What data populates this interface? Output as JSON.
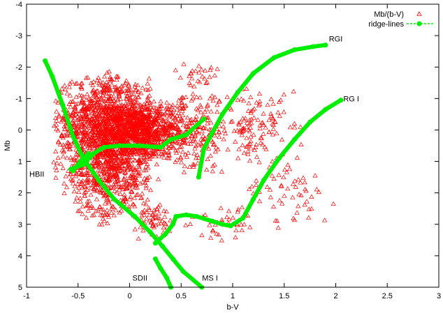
{
  "chart_data": {
    "type": "scatter",
    "xlabel": "b-V",
    "ylabel": "Mb",
    "xlim": [
      -1,
      3
    ],
    "ylim": [
      5,
      -4
    ],
    "y_inverted": true,
    "x_ticks": [
      -1,
      -0.5,
      0,
      0.5,
      1,
      1.5,
      2,
      2.5,
      3
    ],
    "x_tick_labels": [
      "-1",
      "-0.5",
      "0",
      "0.5",
      "1",
      "1.5",
      "2",
      "2.5",
      "3"
    ],
    "y_ticks": [
      -4,
      -3,
      -2,
      -1,
      0,
      1,
      2,
      3,
      4,
      5
    ],
    "y_tick_labels": [
      "-4",
      "-3",
      "-2",
      "-1",
      "0",
      "1",
      "2",
      "3",
      "4",
      "5"
    ],
    "grid": false,
    "legend": {
      "placement": "top-right",
      "entries": [
        {
          "label": "Mb/(b-V)",
          "color": "#ff0000",
          "marker": "triangle"
        },
        {
          "label": "ridge-lines",
          "color": "#00ee00",
          "marker": "filled-circle-line"
        }
      ]
    },
    "annotations": [
      {
        "text": "RGI",
        "x": 2.0,
        "y": -2.9
      },
      {
        "text": "RG I",
        "x": 2.15,
        "y": -1.0
      },
      {
        "text": "HBII",
        "x": -0.9,
        "y": 1.4
      },
      {
        "text": "SDII",
        "x": 0.1,
        "y": 4.7
      },
      {
        "text": "MS I",
        "x": 0.78,
        "y": 4.7
      }
    ],
    "series": [
      {
        "name": "Mb/(b-V)",
        "kind": "scatter",
        "color": "#ff0000",
        "density_regions": [
          {
            "xmin": -0.75,
            "xmax": 0.3,
            "ymin": -1.9,
            "ymax": 2.1,
            "count": 1500
          },
          {
            "xmin": -0.3,
            "xmax": 0.6,
            "ymin": -1.0,
            "ymax": 1.0,
            "count": 700
          },
          {
            "xmin": -0.6,
            "xmax": 0.25,
            "ymin": 0.5,
            "ymax": 3.2,
            "count": 250
          },
          {
            "xmin": 0.0,
            "xmax": 0.5,
            "ymin": 2.2,
            "ymax": 3.6,
            "count": 60
          },
          {
            "xmin": 0.3,
            "xmax": 1.0,
            "ymin": -1.6,
            "ymax": 1.6,
            "count": 200
          },
          {
            "xmin": 0.8,
            "xmax": 1.7,
            "ymin": -1.4,
            "ymax": 1.2,
            "count": 120
          },
          {
            "xmin": 1.0,
            "xmax": 2.05,
            "ymin": 0.8,
            "ymax": 3.4,
            "count": 60
          },
          {
            "xmin": 0.5,
            "xmax": 1.3,
            "ymin": 2.4,
            "ymax": 3.6,
            "count": 40
          },
          {
            "xmin": 0.4,
            "xmax": 0.9,
            "ymin": -2.2,
            "ymax": -1.4,
            "count": 25
          }
        ]
      },
      {
        "name": "ridge-lines",
        "kind": "line",
        "color": "#00ee00",
        "lines": [
          {
            "id": "RGI",
            "points": [
              [
                0.67,
                1.5
              ],
              [
                0.72,
                0.6
              ],
              [
                0.8,
                0.1
              ],
              [
                0.9,
                -0.5
              ],
              [
                1.05,
                -1.2
              ],
              [
                1.2,
                -1.8
              ],
              [
                1.4,
                -2.3
              ],
              [
                1.6,
                -2.55
              ],
              [
                1.78,
                -2.65
              ],
              [
                1.9,
                -2.7
              ]
            ]
          },
          {
            "id": "RG I",
            "points": [
              [
                0.8,
                2.9
              ],
              [
                0.9,
                3.0
              ],
              [
                0.98,
                3.05
              ],
              [
                1.1,
                2.8
              ],
              [
                1.2,
                2.2
              ],
              [
                1.3,
                1.6
              ],
              [
                1.45,
                0.9
              ],
              [
                1.6,
                0.3
              ],
              [
                1.75,
                -0.25
              ],
              [
                1.9,
                -0.65
              ],
              [
                2.05,
                -0.95
              ]
            ]
          },
          {
            "id": "HBII",
            "points": [
              [
                -0.57,
                1.25
              ],
              [
                -0.45,
                1.1
              ],
              [
                -0.35,
                0.75
              ],
              [
                -0.25,
                0.55
              ],
              [
                -0.1,
                0.5
              ],
              [
                0.1,
                0.5
              ],
              [
                0.3,
                0.55
              ],
              [
                0.4,
                0.3
              ],
              [
                0.55,
                0.15
              ],
              [
                0.72,
                -0.35
              ]
            ]
          },
          {
            "id": "SDII",
            "points": [
              [
                -0.82,
                -2.2
              ],
              [
                -0.75,
                -1.7
              ],
              [
                -0.65,
                -0.8
              ],
              [
                -0.55,
                0.2
              ],
              [
                -0.45,
                0.9
              ],
              [
                -0.3,
                1.6
              ],
              [
                -0.15,
                2.2
              ],
              [
                0.05,
                2.75
              ],
              [
                0.2,
                3.25
              ],
              [
                0.32,
                3.7
              ],
              [
                0.42,
                4.1
              ],
              [
                0.52,
                4.5
              ],
              [
                0.7,
                5.0
              ]
            ]
          },
          {
            "id": "MS I",
            "points": [
              [
                -0.55,
                1.3
              ],
              [
                -0.48,
                1.0
              ],
              [
                -0.4,
                0.75
              ]
            ]
          },
          {
            "id": "SDII-lower",
            "points": [
              [
                0.25,
                4.1
              ],
              [
                0.3,
                4.4
              ],
              [
                0.36,
                4.7
              ],
              [
                0.4,
                5.0
              ]
            ]
          },
          {
            "id": "MS I-branch",
            "points": [
              [
                0.25,
                3.6
              ],
              [
                0.35,
                3.3
              ],
              [
                0.42,
                3.0
              ],
              [
                0.45,
                2.75
              ],
              [
                0.55,
                2.7
              ],
              [
                0.65,
                2.75
              ],
              [
                0.8,
                2.9
              ]
            ]
          }
        ]
      }
    ]
  }
}
